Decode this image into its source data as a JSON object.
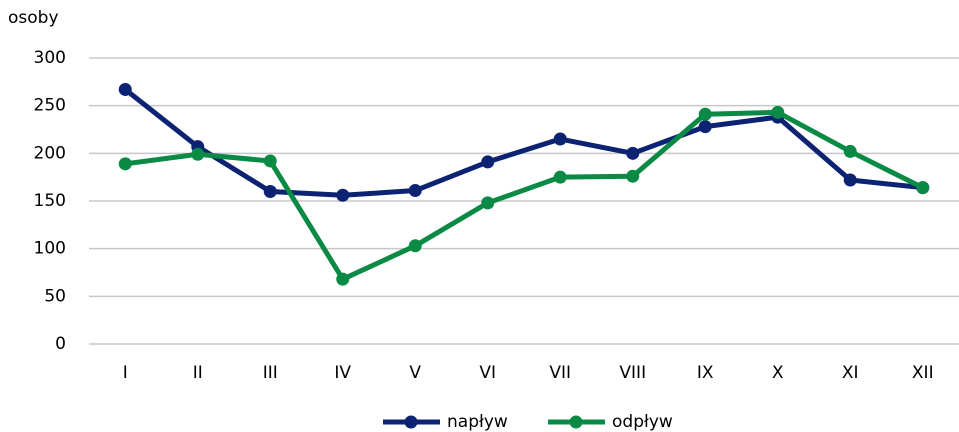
{
  "chart_data": {
    "type": "line",
    "y_label": "osoby",
    "categories": [
      "I",
      "II",
      "III",
      "IV",
      "V",
      "VI",
      "VII",
      "VIII",
      "IX",
      "X",
      "XI",
      "XII"
    ],
    "series": [
      {
        "name": "napływ",
        "color": "#0c2272",
        "values": [
          267,
          207,
          160,
          156,
          161,
          191,
          215,
          200,
          228,
          238,
          172,
          164
        ]
      },
      {
        "name": "odpływ",
        "color": "#0b8a45",
        "values": [
          189,
          199,
          192,
          68,
          103,
          148,
          175,
          176,
          241,
          243,
          202,
          164
        ]
      }
    ],
    "ylim": [
      0,
      300
    ],
    "yticks": [
      0,
      50,
      100,
      150,
      200,
      250,
      300
    ],
    "grid": true,
    "legend": "bottom"
  }
}
